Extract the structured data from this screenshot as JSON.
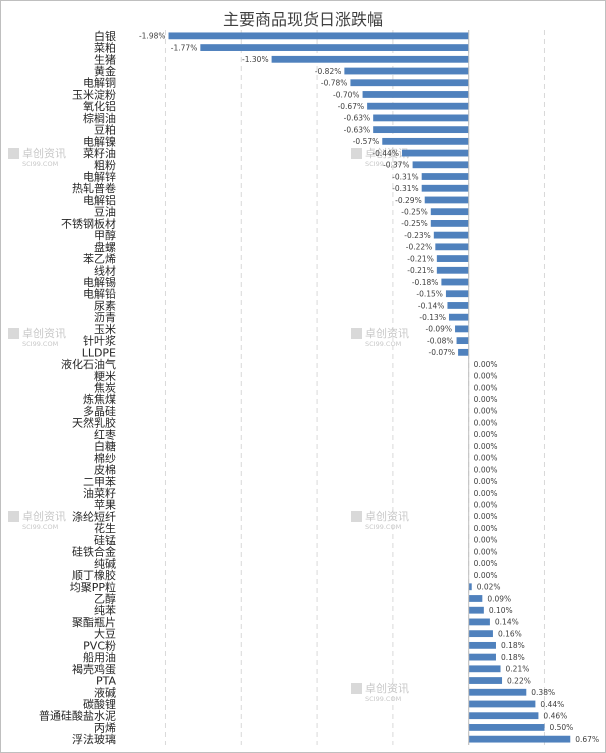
{
  "chart_data": {
    "type": "bar",
    "orientation": "horizontal",
    "title": "主要商品现货日涨跌幅",
    "xlabel": "",
    "ylabel": "",
    "xlim": [
      -2.3,
      0.82
    ],
    "grid": true,
    "bar_color": "#4f81bd",
    "categories": [
      "白银",
      "菜粕",
      "生猪",
      "黄金",
      "电解铜",
      "玉米淀粉",
      "氧化铝",
      "棕榈油",
      "豆粕",
      "电解镍",
      "菜籽油",
      "粗粉",
      "电解锌",
      "热轧普卷",
      "电解铝",
      "豆油",
      "不锈钢板材",
      "甲醇",
      "盘螺",
      "苯乙烯",
      "线材",
      "电解锡",
      "电解铅",
      "尿素",
      "沥青",
      "玉米",
      "针叶浆",
      "LLDPE",
      "液化石油气",
      "粳米",
      "焦炭",
      "炼焦煤",
      "多晶硅",
      "天然乳胶",
      "红枣",
      "白糖",
      "棉纱",
      "皮棉",
      "二甲苯",
      "油菜籽",
      "苹果",
      "涤纶短纤",
      "花生",
      "硅锰",
      "硅铁合金",
      "纯碱",
      "顺丁橡胶",
      "均聚PP粒",
      "乙醇",
      "纯苯",
      "聚酯瓶片",
      "大豆",
      "PVC粉",
      "船用油",
      "褐壳鸡蛋",
      "PTA",
      "液碱",
      "碳酸锂",
      "普通硅酸盐水泥",
      "丙烯",
      "浮法玻璃"
    ],
    "values": [
      -1.98,
      -1.77,
      -1.3,
      -0.82,
      -0.78,
      -0.7,
      -0.67,
      -0.63,
      -0.63,
      -0.57,
      -0.44,
      -0.37,
      -0.31,
      -0.31,
      -0.29,
      -0.25,
      -0.25,
      -0.23,
      -0.22,
      -0.21,
      -0.21,
      -0.18,
      -0.15,
      -0.14,
      -0.13,
      -0.09,
      -0.08,
      -0.07,
      0.0,
      0.0,
      0.0,
      0.0,
      0.0,
      0.0,
      0.0,
      0.0,
      0.0,
      0.0,
      0.0,
      0.0,
      0.0,
      0.0,
      0.0,
      0.0,
      0.0,
      0.0,
      0.0,
      0.02,
      0.09,
      0.1,
      0.14,
      0.16,
      0.18,
      0.18,
      0.21,
      0.22,
      0.38,
      0.44,
      0.46,
      0.5,
      0.67
    ],
    "labels": [
      "-1.98%",
      "-1.77%",
      "-1.30%",
      "-0.82%",
      "-0.78%",
      "-0.70%",
      "-0.67%",
      "-0.63%",
      "-0.63%",
      "-0.57%",
      "-0.44%",
      "-0.37%",
      "-0.31%",
      "-0.31%",
      "-0.29%",
      "-0.25%",
      "-0.25%",
      "-0.23%",
      "-0.22%",
      "-0.21%",
      "-0.21%",
      "-0.18%",
      "-0.15%",
      "-0.14%",
      "-0.13%",
      "-0.09%",
      "-0.08%",
      "-0.07%",
      "0.00%",
      "0.00%",
      "0.00%",
      "0.00%",
      "0.00%",
      "0.00%",
      "0.00%",
      "0.00%",
      "0.00%",
      "0.00%",
      "0.00%",
      "0.00%",
      "0.00%",
      "0.00%",
      "0.00%",
      "0.00%",
      "0.00%",
      "0.00%",
      "0.00%",
      "0.02%",
      "0.09%",
      "0.10%",
      "0.14%",
      "0.16%",
      "0.18%",
      "0.18%",
      "0.21%",
      "0.22%",
      "0.38%",
      "0.44%",
      "0.46%",
      "0.50%",
      "0.67%"
    ]
  },
  "watermark": {
    "text": "卓创资讯",
    "subtext": "SCI99.COM"
  }
}
